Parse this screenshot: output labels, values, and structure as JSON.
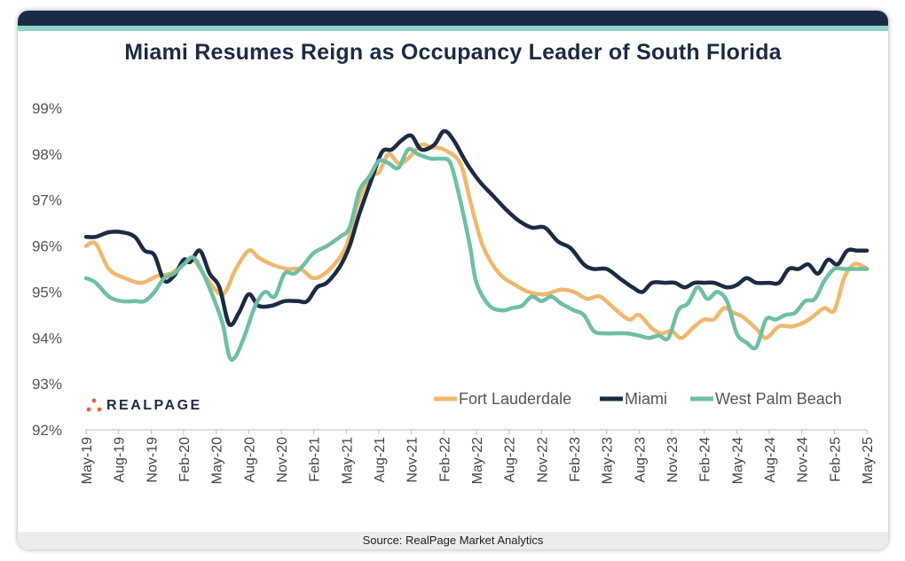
{
  "title": "Miami Resumes Reign as Occupancy Leader of South Florida",
  "source": "Source: RealPage Market Analytics",
  "logo_text": "REALPAGE",
  "colors": {
    "header_bar": "#1c2b44",
    "header_accent": "#8fd3c9",
    "fort_lauderdale": "#f0b86e",
    "miami": "#1c2b44",
    "west_palm_beach": "#6fbfa3"
  },
  "chart_data": {
    "type": "line",
    "title": "Miami Resumes Reign as Occupancy Leader of South Florida",
    "xlabel": "",
    "ylabel": "",
    "ylim": [
      92,
      99
    ],
    "yticks": [
      "92%",
      "93%",
      "94%",
      "95%",
      "96%",
      "97%",
      "98%",
      "99%"
    ],
    "categories": [
      "May-19",
      "Aug-19",
      "Nov-19",
      "Feb-20",
      "May-20",
      "Aug-20",
      "Nov-20",
      "Feb-21",
      "May-21",
      "Aug-21",
      "Nov-21",
      "Feb-22",
      "May-22",
      "Aug-22",
      "Nov-22",
      "Feb-23",
      "May-23",
      "Aug-23",
      "Nov-23",
      "Feb-24",
      "May-24",
      "Aug-24",
      "Nov-24",
      "Feb-25",
      "May-25"
    ],
    "legend_position": "bottom-right",
    "series": [
      {
        "name": "Fort Lauderdale",
        "points": [
          [
            0,
            96.0
          ],
          [
            0.3,
            96.05
          ],
          [
            0.7,
            95.5
          ],
          [
            1.2,
            95.3
          ],
          [
            1.7,
            95.2
          ],
          [
            2.2,
            95.35
          ],
          [
            2.6,
            95.4
          ],
          [
            3.0,
            95.6
          ],
          [
            3.3,
            95.7
          ],
          [
            3.7,
            95.3
          ],
          [
            4.2,
            94.95
          ],
          [
            4.6,
            95.5
          ],
          [
            5.0,
            95.9
          ],
          [
            5.3,
            95.75
          ],
          [
            5.7,
            95.6
          ],
          [
            6.2,
            95.5
          ],
          [
            6.6,
            95.5
          ],
          [
            7.0,
            95.3
          ],
          [
            7.5,
            95.5
          ],
          [
            8.0,
            96.0
          ],
          [
            8.3,
            96.8
          ],
          [
            8.7,
            97.5
          ],
          [
            9.0,
            97.6
          ],
          [
            9.3,
            98.0
          ],
          [
            9.6,
            97.8
          ],
          [
            9.9,
            97.9
          ],
          [
            10.3,
            98.2
          ],
          [
            10.6,
            98.15
          ],
          [
            11.0,
            98.1
          ],
          [
            11.5,
            97.8
          ],
          [
            11.8,
            97.0
          ],
          [
            12.2,
            96.0
          ],
          [
            12.7,
            95.4
          ],
          [
            13.2,
            95.15
          ],
          [
            13.6,
            95.0
          ],
          [
            14.1,
            94.95
          ],
          [
            14.6,
            95.05
          ],
          [
            15.0,
            95.0
          ],
          [
            15.4,
            94.85
          ],
          [
            15.8,
            94.9
          ],
          [
            16.3,
            94.6
          ],
          [
            16.7,
            94.4
          ],
          [
            17.0,
            94.5
          ],
          [
            17.4,
            94.2
          ],
          [
            17.7,
            94.1
          ],
          [
            18.0,
            94.15
          ],
          [
            18.3,
            94.0
          ],
          [
            18.7,
            94.25
          ],
          [
            19.0,
            94.4
          ],
          [
            19.3,
            94.4
          ],
          [
            19.6,
            94.65
          ],
          [
            19.9,
            94.55
          ],
          [
            20.2,
            94.45
          ],
          [
            20.6,
            94.2
          ],
          [
            20.9,
            94.0
          ],
          [
            21.3,
            94.25
          ],
          [
            21.7,
            94.25
          ],
          [
            22.1,
            94.35
          ],
          [
            22.4,
            94.5
          ],
          [
            22.7,
            94.65
          ],
          [
            23.0,
            94.6
          ],
          [
            23.3,
            95.3
          ],
          [
            23.6,
            95.6
          ],
          [
            23.9,
            95.55
          ],
          [
            24.0,
            95.5
          ]
        ]
      },
      {
        "name": "Miami",
        "points": [
          [
            0,
            96.2
          ],
          [
            0.3,
            96.2
          ],
          [
            0.7,
            96.3
          ],
          [
            1.1,
            96.3
          ],
          [
            1.5,
            96.2
          ],
          [
            1.8,
            95.9
          ],
          [
            2.1,
            95.8
          ],
          [
            2.4,
            95.25
          ],
          [
            2.7,
            95.35
          ],
          [
            3.0,
            95.7
          ],
          [
            3.2,
            95.65
          ],
          [
            3.5,
            95.9
          ],
          [
            3.8,
            95.4
          ],
          [
            4.1,
            95.1
          ],
          [
            4.4,
            94.3
          ],
          [
            4.7,
            94.55
          ],
          [
            5.0,
            94.95
          ],
          [
            5.3,
            94.7
          ],
          [
            5.7,
            94.7
          ],
          [
            6.1,
            94.8
          ],
          [
            6.5,
            94.8
          ],
          [
            6.8,
            94.8
          ],
          [
            7.1,
            95.1
          ],
          [
            7.4,
            95.2
          ],
          [
            7.8,
            95.55
          ],
          [
            8.1,
            96.0
          ],
          [
            8.4,
            96.7
          ],
          [
            8.8,
            97.5
          ],
          [
            9.1,
            98.05
          ],
          [
            9.4,
            98.1
          ],
          [
            9.7,
            98.3
          ],
          [
            10.0,
            98.4
          ],
          [
            10.3,
            98.1
          ],
          [
            10.7,
            98.2
          ],
          [
            11.0,
            98.5
          ],
          [
            11.3,
            98.3
          ],
          [
            11.7,
            97.8
          ],
          [
            12.1,
            97.4
          ],
          [
            12.5,
            97.1
          ],
          [
            12.9,
            96.8
          ],
          [
            13.3,
            96.55
          ],
          [
            13.7,
            96.4
          ],
          [
            14.1,
            96.4
          ],
          [
            14.5,
            96.1
          ],
          [
            14.9,
            95.95
          ],
          [
            15.3,
            95.6
          ],
          [
            15.6,
            95.5
          ],
          [
            16.0,
            95.5
          ],
          [
            16.4,
            95.3
          ],
          [
            16.8,
            95.1
          ],
          [
            17.1,
            95.0
          ],
          [
            17.4,
            95.2
          ],
          [
            17.8,
            95.2
          ],
          [
            18.1,
            95.2
          ],
          [
            18.4,
            95.1
          ],
          [
            18.7,
            95.2
          ],
          [
            19.0,
            95.2
          ],
          [
            19.3,
            95.2
          ],
          [
            19.7,
            95.1
          ],
          [
            20.0,
            95.15
          ],
          [
            20.3,
            95.3
          ],
          [
            20.6,
            95.2
          ],
          [
            21.0,
            95.2
          ],
          [
            21.3,
            95.2
          ],
          [
            21.6,
            95.5
          ],
          [
            21.9,
            95.5
          ],
          [
            22.2,
            95.6
          ],
          [
            22.5,
            95.4
          ],
          [
            22.8,
            95.7
          ],
          [
            23.1,
            95.6
          ],
          [
            23.4,
            95.9
          ],
          [
            23.7,
            95.9
          ],
          [
            24.0,
            95.9
          ]
        ]
      },
      {
        "name": "West Palm Beach",
        "points": [
          [
            0,
            95.3
          ],
          [
            0.3,
            95.2
          ],
          [
            0.7,
            94.9
          ],
          [
            1.1,
            94.8
          ],
          [
            1.5,
            94.8
          ],
          [
            1.8,
            94.8
          ],
          [
            2.1,
            95.0
          ],
          [
            2.4,
            95.3
          ],
          [
            2.7,
            95.4
          ],
          [
            3.0,
            95.6
          ],
          [
            3.3,
            95.75
          ],
          [
            3.6,
            95.4
          ],
          [
            3.9,
            94.9
          ],
          [
            4.2,
            94.3
          ],
          [
            4.4,
            93.6
          ],
          [
            4.6,
            93.6
          ],
          [
            4.9,
            94.1
          ],
          [
            5.2,
            94.7
          ],
          [
            5.5,
            95.0
          ],
          [
            5.8,
            94.9
          ],
          [
            6.1,
            95.4
          ],
          [
            6.4,
            95.4
          ],
          [
            6.7,
            95.6
          ],
          [
            7.0,
            95.85
          ],
          [
            7.4,
            96.0
          ],
          [
            7.8,
            96.2
          ],
          [
            8.1,
            96.4
          ],
          [
            8.4,
            97.2
          ],
          [
            8.7,
            97.5
          ],
          [
            9.0,
            97.85
          ],
          [
            9.3,
            97.8
          ],
          [
            9.6,
            97.7
          ],
          [
            9.9,
            98.1
          ],
          [
            10.2,
            98.0
          ],
          [
            10.6,
            97.9
          ],
          [
            10.9,
            97.9
          ],
          [
            11.2,
            97.8
          ],
          [
            11.5,
            97.0
          ],
          [
            11.8,
            96.0
          ],
          [
            12.0,
            95.2
          ],
          [
            12.4,
            94.7
          ],
          [
            12.8,
            94.6
          ],
          [
            13.1,
            94.65
          ],
          [
            13.4,
            94.7
          ],
          [
            13.7,
            94.9
          ],
          [
            14.0,
            94.8
          ],
          [
            14.3,
            94.9
          ],
          [
            14.6,
            94.75
          ],
          [
            15.0,
            94.6
          ],
          [
            15.3,
            94.5
          ],
          [
            15.6,
            94.15
          ],
          [
            15.9,
            94.1
          ],
          [
            16.2,
            94.1
          ],
          [
            16.6,
            94.1
          ],
          [
            17.0,
            94.05
          ],
          [
            17.3,
            94.0
          ],
          [
            17.6,
            94.05
          ],
          [
            17.9,
            94.0
          ],
          [
            18.2,
            94.6
          ],
          [
            18.5,
            94.75
          ],
          [
            18.8,
            95.1
          ],
          [
            19.1,
            94.85
          ],
          [
            19.4,
            95.0
          ],
          [
            19.7,
            94.8
          ],
          [
            20.0,
            94.1
          ],
          [
            20.3,
            93.9
          ],
          [
            20.6,
            93.8
          ],
          [
            20.9,
            94.4
          ],
          [
            21.2,
            94.4
          ],
          [
            21.5,
            94.5
          ],
          [
            21.8,
            94.55
          ],
          [
            22.1,
            94.8
          ],
          [
            22.4,
            94.85
          ],
          [
            22.7,
            95.25
          ],
          [
            23.0,
            95.5
          ],
          [
            23.3,
            95.5
          ],
          [
            23.6,
            95.5
          ],
          [
            24.0,
            95.5
          ]
        ]
      }
    ]
  }
}
